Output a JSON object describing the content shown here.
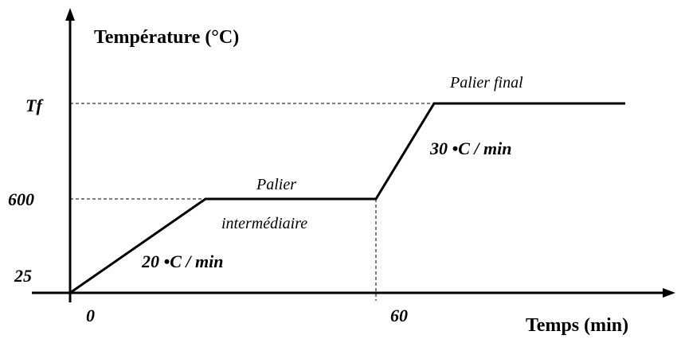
{
  "axes": {
    "y_title": "Température (°C)",
    "x_title": "Temps (min)"
  },
  "y_labels": [
    "Tf",
    "600",
    "25"
  ],
  "x_labels": [
    "0",
    "60"
  ],
  "annotations": {
    "final_plateau": "Palier final",
    "intermediate_plateau_1": "Palier",
    "intermediate_plateau_2": "intermédiaire",
    "rate_1": "20 •C / min",
    "rate_2": "30 •C / min"
  }
}
